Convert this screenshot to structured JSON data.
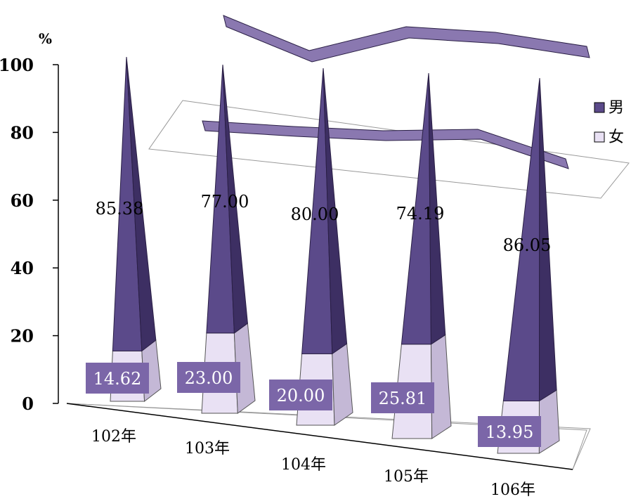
{
  "chart_data": {
    "type": "bar",
    "unit_label": "%",
    "categories": [
      "102年",
      "103年",
      "104年",
      "105年",
      "106年"
    ],
    "series": [
      {
        "name": "男",
        "values": [
          85.38,
          77.0,
          80.0,
          74.19,
          86.05
        ],
        "labels": [
          "85.38",
          "77.00",
          "80.00",
          "74.19",
          "86.05"
        ]
      },
      {
        "name": "女",
        "values": [
          14.62,
          23.0,
          20.0,
          25.81,
          13.95
        ],
        "labels": [
          "14.62",
          "23.00",
          "20.00",
          "25.81",
          "13.95"
        ]
      }
    ],
    "y_ticks": [
      "0",
      "20",
      "40",
      "60",
      "80",
      "100"
    ],
    "ylim": [
      0,
      100
    ],
    "stacked": true,
    "legend_position": "right",
    "colors": {
      "male_front": "#5b4a8a",
      "male_side": "#3d2f63",
      "female_front": "#e9e1f4",
      "female_side": "#c4b8d6",
      "label_box": "#7b66a8",
      "ribbon_top": "#8a78b0",
      "ribbon_front": "#3d2f63"
    }
  }
}
